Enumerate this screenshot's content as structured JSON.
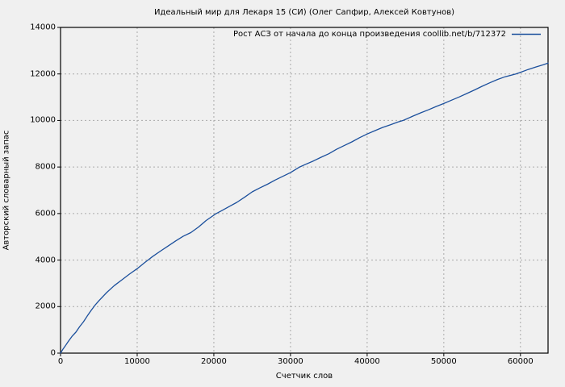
{
  "colors": {
    "background": "#f0f0f0",
    "line": "#1b4f9c",
    "grid": "#a9a9a9",
    "border": "#000000",
    "text": "#000000"
  },
  "chart_data": {
    "type": "line",
    "title": "Идеальный мир для Лекаря 15 (СИ) (Олег Сапфир, Алексей Ковтунов)",
    "xlabel": "Счетчик слов",
    "ylabel": "Авторский словарный запас",
    "xlim": [
      0,
      63600
    ],
    "ylim": [
      0,
      14000
    ],
    "x_ticks": [
      0,
      10000,
      20000,
      30000,
      40000,
      50000,
      60000
    ],
    "y_ticks": [
      0,
      2000,
      4000,
      6000,
      8000,
      10000,
      12000,
      14000
    ],
    "grid": true,
    "grid_style": "dashed",
    "legend_position": "top-inside",
    "series": [
      {
        "name": "Рост АСЗ от начала до конца произведения coollib.net/b/712372",
        "color": "#1b4f9c",
        "x": [
          0,
          300,
          600,
          1000,
          1500,
          2000,
          2500,
          3000,
          3500,
          4000,
          4500,
          5000,
          6000,
          7000,
          8000,
          9000,
          10000,
          11000,
          11400,
          12000,
          13000,
          14000,
          15000,
          16000,
          17000,
          18000,
          19000,
          20300,
          21000,
          22000,
          23000,
          24000,
          25000,
          26000,
          27000,
          28000,
          29000,
          30000,
          31200,
          32000,
          33000,
          34000,
          35000,
          36000,
          37000,
          38000,
          39000,
          40000,
          41000,
          42000,
          43000,
          44000,
          44700,
          46000,
          47000,
          48000,
          49000,
          50000,
          51000,
          52000,
          53000,
          54000,
          55000,
          56000,
          57000,
          58000,
          59400,
          60000,
          61000,
          62000,
          63000,
          63600
        ],
        "y": [
          0,
          160,
          300,
          500,
          720,
          900,
          1140,
          1350,
          1600,
          1840,
          2060,
          2250,
          2600,
          2900,
          3150,
          3400,
          3630,
          3900,
          4000,
          4150,
          4380,
          4600,
          4820,
          5020,
          5180,
          5420,
          5700,
          6000,
          6120,
          6300,
          6480,
          6700,
          6930,
          7100,
          7260,
          7440,
          7600,
          7760,
          8000,
          8120,
          8260,
          8420,
          8570,
          8760,
          8920,
          9080,
          9260,
          9420,
          9560,
          9700,
          9810,
          9930,
          10000,
          10190,
          10330,
          10460,
          10600,
          10730,
          10870,
          11010,
          11160,
          11310,
          11470,
          11620,
          11760,
          11880,
          12000,
          12070,
          12190,
          12300,
          12400,
          12470
        ]
      }
    ]
  }
}
